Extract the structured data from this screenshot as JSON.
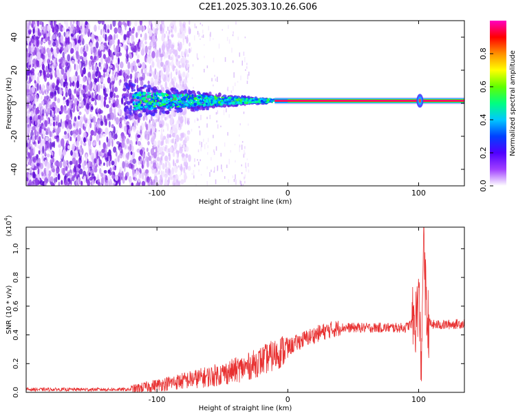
{
  "title": "C2E1.2025.303.10.26.G06",
  "chart_data": [
    {
      "type": "heatmap",
      "name": "spectrogram",
      "xlabel": "Height of straight line (km)",
      "ylabel": "Frequency (Hz)",
      "xlim": [
        -200,
        135
      ],
      "ylim": [
        -50,
        50
      ],
      "xticks": [
        -100,
        0,
        100
      ],
      "yticks": [
        -40,
        -20,
        0,
        20,
        40
      ],
      "colorbar": {
        "label": "Normalized spectral amplitude",
        "range": [
          0,
          1
        ],
        "ticks": [
          0.0,
          0.2,
          0.4,
          0.6,
          0.8
        ],
        "colors": [
          "#ffffff",
          "#a040ff",
          "#5000ff",
          "#0040ff",
          "#00c8ff",
          "#00ff80",
          "#60ff00",
          "#ffff00",
          "#ff9000",
          "#ff0000",
          "#ff00c0"
        ]
      },
      "features": {
        "noise_region_x": [
          -200,
          -95
        ],
        "signal_start_x": -120,
        "carrier_frequency_hz": 1.5,
        "disturbance_x": 100
      }
    },
    {
      "type": "line",
      "name": "snr",
      "xlabel": "Height of straight line (km)",
      "ylabel": "SNR (10 * v/v)",
      "scale_label": "(x10",
      "scale_exp": "4",
      "scale_suffix": ")",
      "xlim": [
        -200,
        135
      ],
      "ylim": [
        0,
        1.15
      ],
      "xticks": [
        -100,
        0,
        100
      ],
      "yticks": [
        0.0,
        0.2,
        0.4,
        0.6,
        0.8,
        1.0
      ],
      "color": "#e83030",
      "series": [
        {
          "name": "SNR",
          "x": [
            -200,
            -180,
            -160,
            -140,
            -120,
            -100,
            -80,
            -60,
            -45,
            -30,
            -20,
            -10,
            0,
            10,
            20,
            30,
            40,
            50,
            60,
            70,
            80,
            90,
            98,
            100,
            102,
            104,
            106,
            110,
            120,
            135
          ],
          "y": [
            0.02,
            0.02,
            0.02,
            0.02,
            0.02,
            0.05,
            0.08,
            0.11,
            0.14,
            0.18,
            0.22,
            0.26,
            0.31,
            0.36,
            0.4,
            0.43,
            0.45,
            0.45,
            0.45,
            0.45,
            0.45,
            0.45,
            0.5,
            0.7,
            0.2,
            1.1,
            0.5,
            0.47,
            0.47,
            0.48
          ]
        }
      ]
    }
  ]
}
